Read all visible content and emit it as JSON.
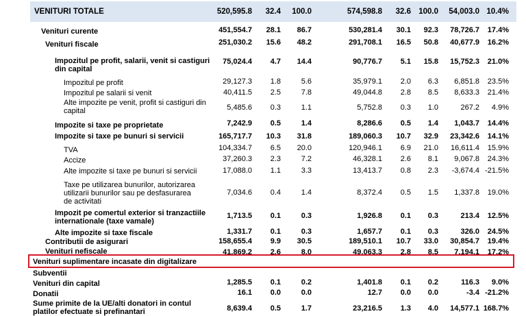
{
  "rows": [
    {
      "label": "VENITURI TOTALE",
      "c1": "520,595.8",
      "c2": "32.4",
      "c3": "100.0",
      "c4": "574,598.8",
      "c5": "32.6",
      "c6": "100.0",
      "c7": "54,003.0",
      "c8": "10.4%"
    },
    {
      "label": "Venituri curente",
      "c1": "451,554.7",
      "c2": "28.1",
      "c3": "86.7",
      "c4": "530,281.4",
      "c5": "30.1",
      "c6": "92.3",
      "c7": "78,726.7",
      "c8": "17.4%"
    },
    {
      "label": "Venituri fiscale",
      "c1": "251,030.2",
      "c2": "15.6",
      "c3": "48.2",
      "c4": "291,708.1",
      "c5": "16.5",
      "c6": "50.8",
      "c7": "40,677.9",
      "c8": "16.2%"
    },
    {
      "label": "Impozitul pe profit, salarii, venit si castiguri din capital",
      "c1": "75,024.4",
      "c2": "4.7",
      "c3": "14.4",
      "c4": "90,776.7",
      "c5": "5.1",
      "c6": "15.8",
      "c7": "15,752.3",
      "c8": "21.0%"
    },
    {
      "label": "Impozitul pe profit",
      "c1": "29,127.3",
      "c2": "1.8",
      "c3": "5.6",
      "c4": "35,979.1",
      "c5": "2.0",
      "c6": "6.3",
      "c7": "6,851.8",
      "c8": "23.5%"
    },
    {
      "label": "Impozitul pe salarii si venit",
      "c1": "40,411.5",
      "c2": "2.5",
      "c3": "7.8",
      "c4": "49,044.8",
      "c5": "2.8",
      "c6": "8.5",
      "c7": "8,633.3",
      "c8": "21.4%"
    },
    {
      "label": "Alte impozite pe venit, profit si castiguri din capital",
      "c1": "5,485.6",
      "c2": "0.3",
      "c3": "1.1",
      "c4": "5,752.8",
      "c5": "0.3",
      "c6": "1.0",
      "c7": "267.2",
      "c8": "4.9%"
    },
    {
      "label": "Impozite si taxe pe proprietate",
      "c1": "7,242.9",
      "c2": "0.5",
      "c3": "1.4",
      "c4": "8,286.6",
      "c5": "0.5",
      "c6": "1.4",
      "c7": "1,043.7",
      "c8": "14.4%"
    },
    {
      "label": "Impozite si taxe pe bunuri si servicii",
      "c1": "165,717.7",
      "c2": "10.3",
      "c3": "31.8",
      "c4": "189,060.3",
      "c5": "10.7",
      "c6": "32.9",
      "c7": "23,342.6",
      "c8": "14.1%"
    },
    {
      "label": "TVA",
      "c1": "104,334.7",
      "c2": "6.5",
      "c3": "20.0",
      "c4": "120,946.1",
      "c5": "6.9",
      "c6": "21.0",
      "c7": "16,611.4",
      "c8": "15.9%"
    },
    {
      "label": "Accize",
      "c1": "37,260.3",
      "c2": "2.3",
      "c3": "7.2",
      "c4": "46,328.1",
      "c5": "2.6",
      "c6": "8.1",
      "c7": "9,067.8",
      "c8": "24.3%"
    },
    {
      "label": "Alte impozite si taxe pe bunuri si servicii",
      "c1": "17,088.0",
      "c2": "1.1",
      "c3": "3.3",
      "c4": "13,413.7",
      "c5": "0.8",
      "c6": "2.3",
      "c7": "-3,674.4",
      "c8": "-21.5%"
    },
    {
      "label": "Taxe pe utilizarea bunurilor, autorizarea utilizarii bunurilor sau pe desfasurarea de activitati",
      "c1": "7,034.6",
      "c2": "0.4",
      "c3": "1.4",
      "c4": "8,372.4",
      "c5": "0.5",
      "c6": "1.5",
      "c7": "1,337.8",
      "c8": "19.0%"
    },
    {
      "label": "Impozit pe comertul exterior si tranzactiile internationale (taxe vamale)",
      "c1": "1,713.5",
      "c2": "0.1",
      "c3": "0.3",
      "c4": "1,926.8",
      "c5": "0.1",
      "c6": "0.3",
      "c7": "213.4",
      "c8": "12.5%"
    },
    {
      "label": "Alte impozite si taxe fiscale",
      "c1": "1,331.7",
      "c2": "0.1",
      "c3": "0.3",
      "c4": "1,657.7",
      "c5": "0.1",
      "c6": "0.3",
      "c7": "326.0",
      "c8": "24.5%"
    },
    {
      "label": "Contributii de asigurari",
      "c1": "158,655.4",
      "c2": "9.9",
      "c3": "30.5",
      "c4": "189,510.1",
      "c5": "10.7",
      "c6": "33.0",
      "c7": "30,854.7",
      "c8": "19.4%"
    },
    {
      "label": "Venituri nefiscale",
      "c1": "41,869.2",
      "c2": "2.6",
      "c3": "8.0",
      "c4": "49,063.3",
      "c5": "2.8",
      "c6": "8.5",
      "c7": "7,194.1",
      "c8": "17.2%"
    },
    {
      "label": "Venituri suplimentare incasate din digitalizare",
      "c1": "",
      "c2": "",
      "c3": "",
      "c4": "",
      "c5": "",
      "c6": "",
      "c7": "",
      "c8": ""
    },
    {
      "label": "Subventii",
      "c1": "",
      "c2": "",
      "c3": "",
      "c4": "",
      "c5": "",
      "c6": "",
      "c7": "",
      "c8": ""
    },
    {
      "label": "Venituri din capital",
      "c1": "1,285.5",
      "c2": "0.1",
      "c3": "0.2",
      "c4": "1,401.8",
      "c5": "0.1",
      "c6": "0.2",
      "c7": "116.3",
      "c8": "9.0%"
    },
    {
      "label": "Donatii",
      "c1": "16.1",
      "c2": "0.0",
      "c3": "0.0",
      "c4": "12.7",
      "c5": "0.0",
      "c6": "0.0",
      "c7": "-3.4",
      "c8": "-21.2%"
    },
    {
      "label": "Sume primite de la UE/alti donatori in contul platilor efectuate si prefinantari",
      "c1": "8,639.4",
      "c2": "0.5",
      "c3": "1.7",
      "c4": "23,216.5",
      "c5": "1.3",
      "c6": "4.0",
      "c7": "14,577.1",
      "c8": "168.7%"
    }
  ]
}
